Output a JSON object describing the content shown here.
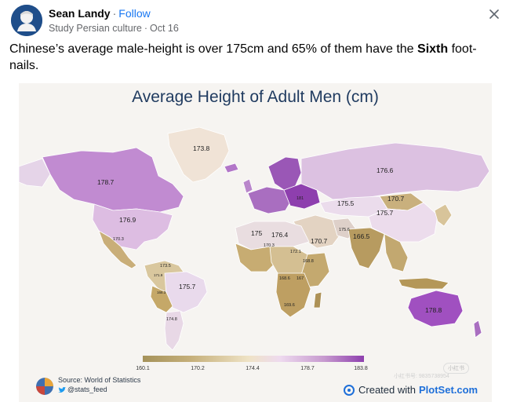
{
  "post": {
    "author": "Sean Landy",
    "follow_label": "Follow",
    "group": "Study Persian culture",
    "date": "Oct 16",
    "separator": "·",
    "text_before_bold": "Chinese’s average male-height is over 175cm and 65% of them have the ",
    "text_bold": "Sixth",
    "text_after_bold": " foot-nails."
  },
  "icons": {
    "avatar": "avatar-silhouette",
    "close": "close-icon",
    "twitter": "twitter-bird-icon",
    "source_logo": "world-of-statistics-logo",
    "plotset": "plotset-logo-icon"
  },
  "colors": {
    "follow": "#1877f2",
    "low": "#a5925a",
    "mid": "#efe3c6",
    "high": "#8e3fae",
    "title": "#1f3a5f",
    "brand": "#1e6fd9"
  },
  "chart_data": {
    "type": "choropleth",
    "title": "Average Height of Adult Men (cm)",
    "legend_ticks": [
      "160.1",
      "170.2",
      "174.4",
      "178.7",
      "183.8"
    ],
    "regions": [
      {
        "label": "173.8",
        "value": 173.8
      },
      {
        "label": "178.7",
        "value": 178.7
      },
      {
        "label": "176.9",
        "value": 176.9
      },
      {
        "label": "170.3",
        "value": 170.3
      },
      {
        "label": "173.5",
        "value": 173.5
      },
      {
        "label": "171.9",
        "value": 171.9
      },
      {
        "label": "168.3",
        "value": 168.3
      },
      {
        "label": "175.7",
        "value": 175.7
      },
      {
        "label": "174.8",
        "value": 174.8
      },
      {
        "label": "175",
        "value": 175
      },
      {
        "label": "176.4",
        "value": 176.4
      },
      {
        "label": "170.3",
        "value": 170.3
      },
      {
        "label": "172.1",
        "value": 172.1
      },
      {
        "label": "170.7",
        "value": 170.7
      },
      {
        "label": "168.8",
        "value": 168.8
      },
      {
        "label": "168.6",
        "value": 168.6
      },
      {
        "label": "167",
        "value": 167
      },
      {
        "label": "169.6",
        "value": 169.6
      },
      {
        "label": "176.6",
        "value": 176.6
      },
      {
        "label": "175.5",
        "value": 175.5
      },
      {
        "label": "170.7",
        "value": 170.7
      },
      {
        "label": "175.7",
        "value": 175.7
      },
      {
        "label": "175.6",
        "value": 175.6
      },
      {
        "label": "166.5",
        "value": 166.5
      },
      {
        "label": "181",
        "value": 181
      },
      {
        "label": "178.8",
        "value": 178.8
      }
    ]
  },
  "footer": {
    "source": "Source: World of Statistics",
    "handle": "@stats_feed",
    "credit_prefix": "Created with",
    "credit_brand": "PlotSet.com",
    "watermark_chip": "小红书",
    "watermark_id": "小红书号: 9835738954"
  }
}
